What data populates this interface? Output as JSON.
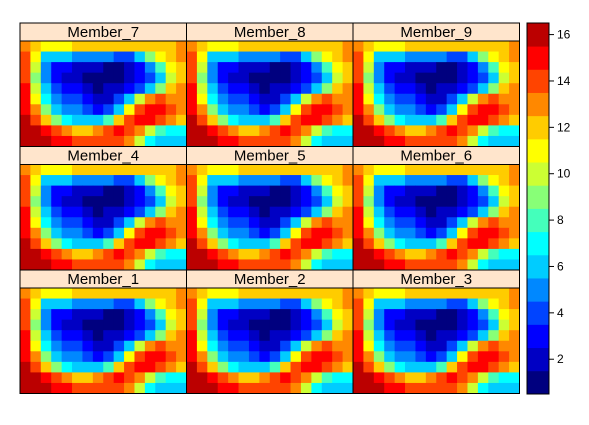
{
  "chart_data": {
    "type": "heatmap",
    "layout": {
      "columns": 3,
      "rows": 3
    },
    "panel_order": [
      "Member_7",
      "Member_8",
      "Member_9",
      "Member_4",
      "Member_5",
      "Member_6",
      "Member_1",
      "Member_2",
      "Member_3"
    ],
    "panels": [
      {
        "name": "Member_7",
        "label": "Member_7"
      },
      {
        "name": "Member_8",
        "label": "Member_8"
      },
      {
        "name": "Member_9",
        "label": "Member_9"
      },
      {
        "name": "Member_4",
        "label": "Member_4"
      },
      {
        "name": "Member_5",
        "label": "Member_5"
      },
      {
        "name": "Member_6",
        "label": "Member_6"
      },
      {
        "name": "Member_1",
        "label": "Member_1"
      },
      {
        "name": "Member_2",
        "label": "Member_2"
      },
      {
        "name": "Member_3",
        "label": "Member_3"
      }
    ],
    "grid": {
      "ncols": 16,
      "nrows": 10,
      "values": [
        [
          13,
          12,
          11,
          11,
          11,
          12,
          12,
          12,
          12,
          12,
          12,
          12,
          12,
          12,
          12,
          13
        ],
        [
          14,
          11,
          6,
          6,
          6,
          5,
          5,
          5,
          5,
          4,
          4,
          6,
          9,
          11,
          12,
          13
        ],
        [
          14,
          10,
          5,
          3,
          3,
          2,
          2,
          2,
          1,
          1,
          2,
          3,
          5,
          8,
          11,
          12
        ],
        [
          14,
          9,
          5,
          3,
          2,
          2,
          1,
          1,
          1,
          1,
          2,
          3,
          4,
          6,
          10,
          12
        ],
        [
          15,
          10,
          6,
          4,
          3,
          3,
          2,
          1,
          2,
          2,
          3,
          4,
          6,
          9,
          12,
          13
        ],
        [
          15,
          11,
          7,
          5,
          4,
          4,
          3,
          2,
          2,
          4,
          6,
          10,
          13,
          14,
          13,
          13
        ],
        [
          15,
          13,
          9,
          6,
          5,
          5,
          4,
          3,
          4,
          6,
          11,
          14,
          15,
          15,
          14,
          13
        ],
        [
          16,
          14,
          12,
          9,
          7,
          6,
          6,
          6,
          8,
          12,
          14,
          15,
          15,
          14,
          13,
          12
        ],
        [
          16,
          16,
          15,
          14,
          13,
          12,
          12,
          13,
          14,
          15,
          14,
          13,
          10,
          8,
          7,
          7
        ],
        [
          16,
          16,
          16,
          15,
          15,
          14,
          14,
          14,
          14,
          14,
          13,
          10,
          7,
          6,
          6,
          6
        ]
      ]
    },
    "colorbar": {
      "range": [
        0.5,
        16.5
      ],
      "ticks": [
        2,
        4,
        6,
        8,
        10,
        12,
        14,
        16
      ],
      "tick_labels": [
        "2",
        "4",
        "6",
        "8",
        "10",
        "12",
        "14",
        "16"
      ],
      "levels": 16,
      "colors": [
        "#00007f",
        "#0000c4",
        "#0000ff",
        "#0044ff",
        "#0088ff",
        "#00ccff",
        "#00ffff",
        "#44ffbb",
        "#88ff77",
        "#ccff33",
        "#ffff00",
        "#ffcc00",
        "#ff8800",
        "#ff4400",
        "#ff0000",
        "#bb0000"
      ]
    },
    "strip_color": "#ffe5cc",
    "title": "",
    "xlabel": "",
    "ylabel": ""
  }
}
